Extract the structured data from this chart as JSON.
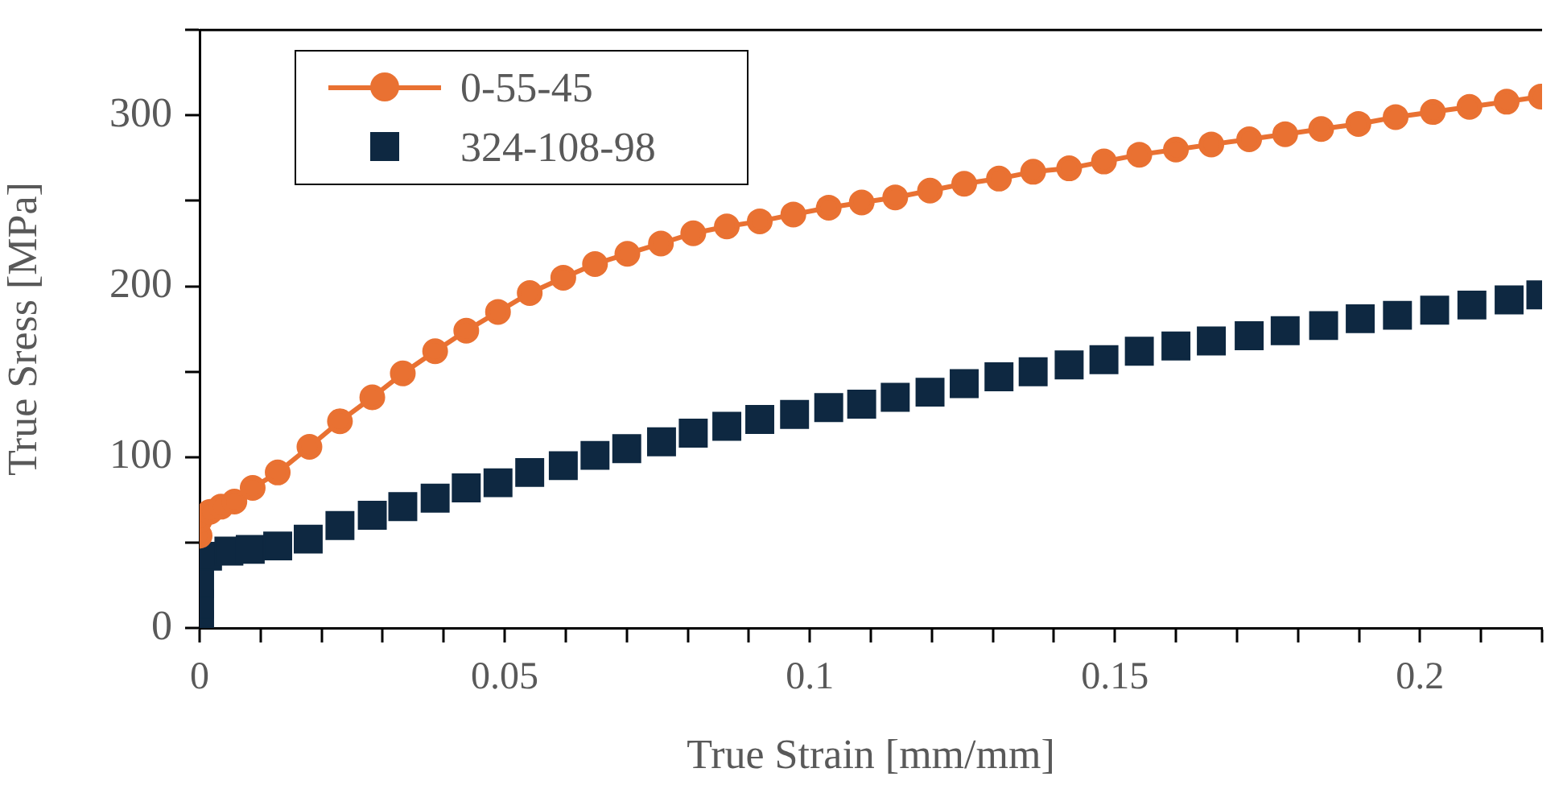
{
  "chart_data": {
    "type": "line",
    "xlabel": "True Strain [mm/mm]",
    "ylabel": "True Sress [MPa]",
    "xlim": [
      0,
      0.22
    ],
    "ylim": [
      0,
      350
    ],
    "xticks": [
      0,
      {
        "value": 0.01,
        "label": null
      },
      {
        "value": 0.02,
        "label": null
      },
      {
        "value": 0.03,
        "label": null
      },
      {
        "value": 0.04,
        "label": null
      },
      0.05,
      {
        "value": 0.06,
        "label": null
      },
      {
        "value": 0.07,
        "label": null
      },
      {
        "value": 0.08,
        "label": null
      },
      {
        "value": 0.09,
        "label": null
      },
      0.1,
      {
        "value": 0.11,
        "label": null
      },
      {
        "value": 0.12,
        "label": null
      },
      {
        "value": 0.13,
        "label": null
      },
      {
        "value": 0.14,
        "label": null
      },
      0.15,
      {
        "value": 0.16,
        "label": null
      },
      {
        "value": 0.17,
        "label": null
      },
      {
        "value": 0.18,
        "label": null
      },
      {
        "value": 0.19,
        "label": null
      },
      0.2,
      {
        "value": 0.21,
        "label": null
      },
      {
        "value": 0.22,
        "label": null
      }
    ],
    "yticks": [
      0,
      {
        "value": 50,
        "label": null
      },
      100,
      {
        "value": 150,
        "label": null
      },
      200,
      {
        "value": 250,
        "label": null
      },
      300,
      {
        "value": 350,
        "label": null
      }
    ],
    "grid": false,
    "legend": "top left",
    "series": [
      {
        "name": "0-55-45",
        "color": "#e97132",
        "marker": "circle",
        "line_style": "solid",
        "x": [
          0,
          0,
          0.0017,
          0.0035,
          0.0057,
          0.0087,
          0.0128,
          0.018,
          0.023,
          0.0283,
          0.0333,
          0.0386,
          0.0437,
          0.0489,
          0.0541,
          0.0596,
          0.0648,
          0.0701,
          0.0756,
          0.0809,
          0.0864,
          0.0918,
          0.0973,
          0.1031,
          0.1085,
          0.114,
          0.1197,
          0.1253,
          0.131,
          0.1366,
          0.1425,
          0.1482,
          0.154,
          0.16,
          0.1658,
          0.172,
          0.1779,
          0.1838,
          0.1899,
          0.196,
          0.2021,
          0.2081,
          0.2142,
          0.2198
        ],
        "values": [
          54,
          63,
          68,
          71,
          74,
          82,
          91,
          106,
          121,
          135,
          149,
          162,
          174,
          185,
          196,
          205,
          213,
          219,
          225,
          231,
          235,
          238,
          242,
          246,
          249,
          252,
          256,
          260,
          263,
          267,
          269,
          273,
          277,
          280,
          283,
          286,
          289,
          292,
          295,
          299,
          302,
          305,
          308,
          311
        ]
      },
      {
        "name": "324-108-98",
        "type": "scatter",
        "color": "#0e2841",
        "marker": "square",
        "x": [
          0,
          0,
          0,
          0.0013,
          0.0048,
          0.0083,
          0.0128,
          0.0178,
          0.023,
          0.0283,
          0.0333,
          0.0386,
          0.0437,
          0.0489,
          0.0541,
          0.0596,
          0.0648,
          0.07,
          0.0757,
          0.0809,
          0.0864,
          0.0918,
          0.0975,
          0.1031,
          0.1085,
          0.114,
          0.1197,
          0.1253,
          0.131,
          0.1366,
          0.1425,
          0.1482,
          0.154,
          0.16,
          0.1658,
          0.172,
          0.1779,
          0.1842,
          0.1902,
          0.1963,
          0.2024,
          0.2085,
          0.2146,
          0.2198
        ],
        "values": [
          2,
          14,
          26,
          42,
          45,
          46,
          48,
          52,
          60,
          66,
          71,
          76,
          82,
          85,
          91,
          95,
          101,
          105,
          109,
          114,
          118,
          122,
          125,
          129,
          131,
          135,
          138,
          143,
          147,
          150,
          154,
          157,
          162,
          165,
          168,
          171,
          174,
          177,
          181,
          183,
          186,
          189,
          192,
          195
        ]
      }
    ]
  }
}
